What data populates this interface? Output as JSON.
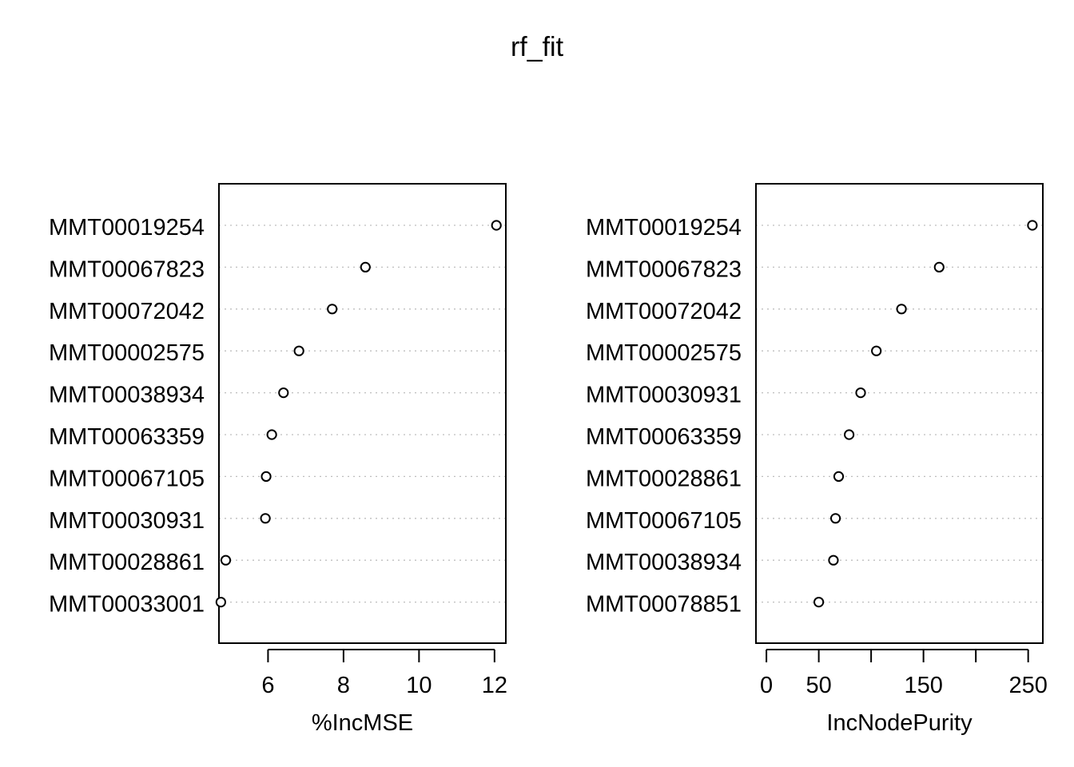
{
  "title": "rf_fit",
  "chart_data": [
    {
      "type": "scatter",
      "variant": "dotchart",
      "title": "",
      "xlabel": "%IncMSE",
      "ylabel": "",
      "xlim": [
        4.7,
        12.3
      ],
      "xticks": [
        6,
        8,
        10,
        12
      ],
      "grid": "horizontal dotted",
      "categories": [
        "MMT00019254",
        "MMT00067823",
        "MMT00072042",
        "MMT00002575",
        "MMT00038934",
        "MMT00063359",
        "MMT00067105",
        "MMT00030931",
        "MMT00028861",
        "MMT00033001"
      ],
      "values": [
        12.05,
        8.58,
        7.7,
        6.82,
        6.41,
        6.1,
        5.95,
        5.93,
        4.88,
        4.75
      ]
    },
    {
      "type": "scatter",
      "variant": "dotchart",
      "title": "",
      "xlabel": "IncNodePurity",
      "ylabel": "",
      "xlim": [
        -10,
        264
      ],
      "xticks": [
        0,
        50,
        100,
        150,
        200,
        250
      ],
      "xtick_labels": [
        "0",
        "50",
        "",
        "150",
        "",
        "250"
      ],
      "grid": "horizontal dotted",
      "categories": [
        "MMT00019254",
        "MMT00067823",
        "MMT00072042",
        "MMT00002575",
        "MMT00030931",
        "MMT00063359",
        "MMT00028861",
        "MMT00067105",
        "MMT00038934",
        "MMT00078851"
      ],
      "values": [
        254,
        165,
        129,
        105,
        90,
        79,
        69,
        66,
        64,
        50
      ]
    }
  ]
}
